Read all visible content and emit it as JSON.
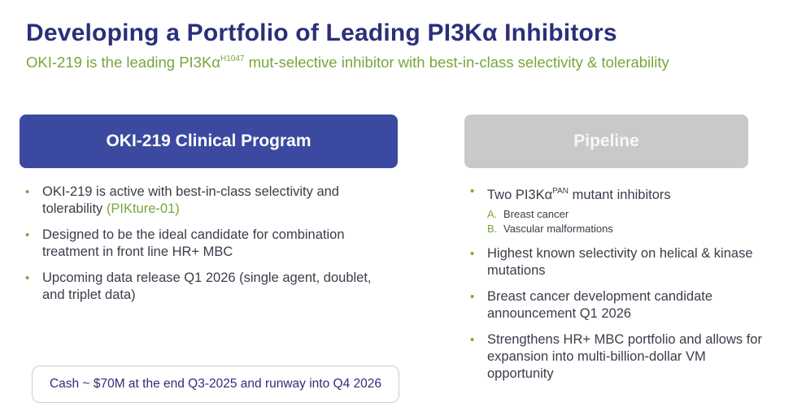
{
  "title": "Developing a Portfolio of Leading PI3Kα Inhibitors",
  "subtitle": {
    "before": "OKI-219 is the leading PI3Kα",
    "superscript": "H1047",
    "after": " mut-selective inhibitor with best-in-class selectivity & tolerability"
  },
  "left_panel": {
    "header": "OKI-219 Clinical Program",
    "bullets": [
      {
        "text": "OKI-219 is active with best-in-class selectivity and tolerability ",
        "highlight": "(PIKture-01)"
      },
      {
        "text": "Designed to be the ideal candidate for combination treatment in front line HR+ MBC"
      },
      {
        "text": "Upcoming data release Q1 2026 (single agent, doublet, and triplet data)"
      }
    ]
  },
  "right_panel": {
    "header": "Pipeline",
    "bullets": [
      {
        "before": "Two PI3Kα",
        "superscript": "PAN",
        "after": " mutant inhibitors",
        "sub_items": [
          {
            "letter": "A.",
            "text": "Breast cancer"
          },
          {
            "letter": "B.",
            "text": "Vascular malformations"
          }
        ]
      },
      {
        "text": "Highest known selectivity on helical & kinase mutations"
      },
      {
        "text": "Breast cancer development candidate announcement Q1 2026"
      },
      {
        "text": "Strengthens HR+ MBC portfolio and allows for expansion into multi-billion-dollar VM opportunity"
      }
    ]
  },
  "cash_note": "Cash ~ $70M at the end Q3-2025 and runway into Q4 2026",
  "bullet_glyph": "•",
  "colors": {
    "title": "#2b2f7a",
    "accent_green": "#7aa53b",
    "left_header_bg": "#3b4aa0",
    "right_header_bg": "#c9c9cb"
  }
}
